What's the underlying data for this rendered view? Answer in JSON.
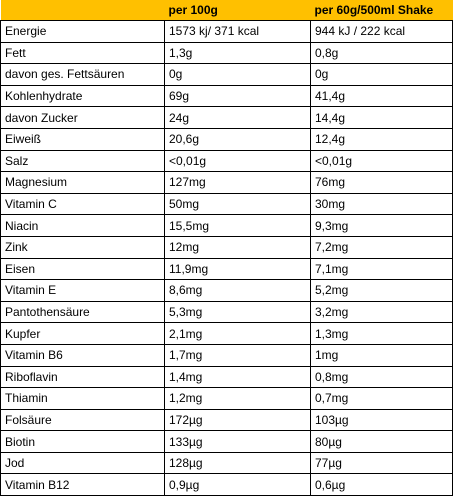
{
  "table": {
    "headers": [
      "",
      "per 100g",
      "per 60g/500ml Shake"
    ],
    "rows": [
      [
        "Energie",
        "1573 kj/ 371 kcal",
        "944 kJ / 222 kcal"
      ],
      [
        "Fett",
        "1,3g",
        "0,8g"
      ],
      [
        "davon ges. Fettsäuren",
        "0g",
        "0g"
      ],
      [
        "Kohlenhydrate",
        "69g",
        "41,4g"
      ],
      [
        "davon Zucker",
        "24g",
        "14,4g"
      ],
      [
        "Eiweiß",
        "20,6g",
        "12,4g"
      ],
      [
        "Salz",
        "<0,01g",
        "<0,01g"
      ],
      [
        "Magnesium",
        "127mg",
        "76mg"
      ],
      [
        "Vitamin C",
        "50mg",
        "30mg"
      ],
      [
        "Niacin",
        "15,5mg",
        "9,3mg"
      ],
      [
        "Zink",
        "12mg",
        "7,2mg"
      ],
      [
        "Eisen",
        "11,9mg",
        "7,1mg"
      ],
      [
        "Vitamin E",
        "8,6mg",
        "5,2mg"
      ],
      [
        "Pantothensäure",
        "5,3mg",
        "3,2mg"
      ],
      [
        "Kupfer",
        "2,1mg",
        "1,3mg"
      ],
      [
        "Vitamin B6",
        "1,7mg",
        "1mg"
      ],
      [
        "Riboflavin",
        "1,4mg",
        "0,8mg"
      ],
      [
        "Thiamin",
        "1,2mg",
        "0,7mg"
      ],
      [
        "Folsäure",
        "172µg",
        "103µg"
      ],
      [
        "Biotin",
        "133µg",
        "80µg"
      ],
      [
        "Jod",
        "128µg",
        "77µg"
      ],
      [
        "Vitamin B12",
        "0,9µg",
        "0,6µg"
      ]
    ]
  },
  "colors": {
    "header_background": "#ffc000",
    "border": "#000000"
  }
}
